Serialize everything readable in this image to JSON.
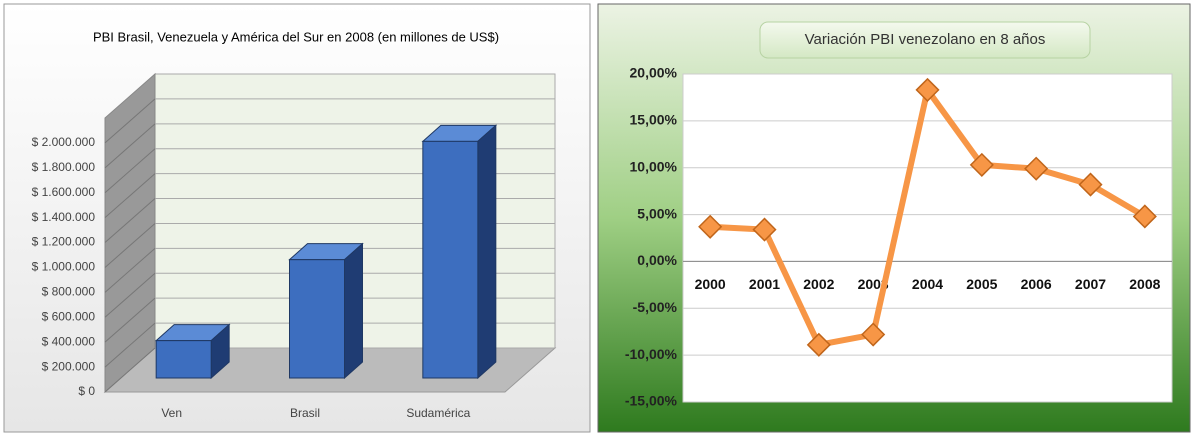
{
  "chart_data": [
    {
      "type": "bar3d",
      "title": "PBI Brasil, Venezuela y América del Sur en 2008 (en millones de US$)",
      "categories": [
        "Ven",
        "Brasil",
        "Sudamérica"
      ],
      "values": [
        300000,
        950000,
        1900000
      ],
      "color": "#3d6ebf",
      "ylim": [
        0,
        2200000
      ],
      "yticks": [
        {
          "value": 0,
          "label": "$ 0"
        },
        {
          "value": 200000,
          "label": "$ 200.000"
        },
        {
          "value": 400000,
          "label": "$ 400.000"
        },
        {
          "value": 600000,
          "label": "$ 600.000"
        },
        {
          "value": 800000,
          "label": "$ 800.000"
        },
        {
          "value": 1000000,
          "label": "$ 1.000.000"
        },
        {
          "value": 1200000,
          "label": "$ 1.200.000"
        },
        {
          "value": 1400000,
          "label": "$ 1.400.000"
        },
        {
          "value": 1600000,
          "label": "$ 1.600.000"
        },
        {
          "value": 1800000,
          "label": "$ 1.800.000"
        },
        {
          "value": 2000000,
          "label": "$ 2.000.000"
        }
      ],
      "grid": true
    },
    {
      "type": "line",
      "title": "Variación PBI venezolano en 8 años",
      "categories": [
        "2000",
        "2001",
        "2002",
        "2003",
        "2004",
        "2005",
        "2006",
        "2007",
        "2008"
      ],
      "values": [
        3.7,
        3.4,
        -8.9,
        -7.8,
        18.3,
        10.3,
        9.9,
        8.2,
        4.8
      ],
      "color": "#f79646",
      "ylim": [
        -15,
        20
      ],
      "yticks": [
        {
          "value": -15,
          "label": "-15,00%"
        },
        {
          "value": -10,
          "label": "-10,00%"
        },
        {
          "value": -5,
          "label": "-5,00%"
        },
        {
          "value": 0,
          "label": "0,00%"
        },
        {
          "value": 5,
          "label": "5,00%"
        },
        {
          "value": 10,
          "label": "10,00%"
        },
        {
          "value": 15,
          "label": "15,00%"
        },
        {
          "value": 20,
          "label": "20,00%"
        }
      ],
      "grid": true
    }
  ]
}
